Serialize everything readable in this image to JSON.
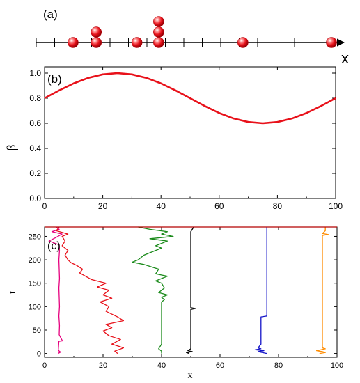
{
  "chart_data": [
    {
      "panel": "(a)",
      "type": "scatter",
      "xlabel": "x",
      "tick_count": 17,
      "particles": [
        {
          "x": 11,
          "stack": 1
        },
        {
          "x": 19,
          "stack": 2
        },
        {
          "x": 33,
          "stack": 1
        },
        {
          "x": 40.5,
          "stack": 3
        },
        {
          "x": 69.5,
          "stack": 1
        },
        {
          "x": 100,
          "stack": 1
        }
      ],
      "ball_color": "#e8111a"
    },
    {
      "panel": "(b)",
      "type": "line",
      "xlabel": "",
      "ylabel": "β",
      "xlim": [
        0,
        100
      ],
      "ylim": [
        0.0,
        1.05
      ],
      "xticks": [
        "0",
        "20",
        "40",
        "60",
        "80",
        "100"
      ],
      "yticks": [
        "0.0",
        "0.2",
        "0.4",
        "0.6",
        "0.8",
        "1.0"
      ],
      "series": [
        {
          "color": "#e8111a",
          "x": [
            0,
            5,
            10,
            15,
            20,
            25,
            30,
            35,
            40,
            45,
            50,
            55,
            60,
            65,
            70,
            75,
            80,
            85,
            90,
            95,
            100
          ],
          "y": [
            0.8,
            0.862,
            0.918,
            0.962,
            0.99,
            1.0,
            0.99,
            0.962,
            0.918,
            0.862,
            0.8,
            0.738,
            0.682,
            0.638,
            0.61,
            0.6,
            0.61,
            0.638,
            0.682,
            0.738,
            0.8
          ]
        }
      ]
    },
    {
      "panel": "(c)",
      "type": "line",
      "xlabel": "x",
      "ylabel": "t",
      "xlim": [
        0,
        100
      ],
      "ylim": [
        -8,
        270
      ],
      "xticks": [
        "0",
        "20",
        "40",
        "60",
        "80",
        "100"
      ],
      "yticks": [
        "0",
        "50",
        "100",
        "150",
        "200",
        "250"
      ],
      "series": [
        {
          "color": "#e6007e",
          "t": [
            0,
            3,
            5,
            8,
            26,
            27,
            40,
            60,
            80,
            100,
            120,
            140,
            160,
            180,
            200,
            220,
            232,
            240,
            248,
            255,
            260,
            265,
            270
          ],
          "x": [
            4.6,
            5.5,
            5.0,
            4.7,
            4.9,
            6.1,
            5.0,
            5.1,
            4.9,
            5.1,
            5.0,
            4.9,
            5.1,
            5.0,
            4.9,
            5.1,
            5.0,
            1.5,
            4.0,
            6.0,
            2.5,
            5.0,
            4.0
          ]
        },
        {
          "color": "#e8111a",
          "t": [
            0,
            5,
            12,
            20,
            30,
            38,
            48,
            55,
            62,
            70,
            78,
            90,
            100,
            110,
            118,
            125,
            135,
            142,
            150,
            158,
            165,
            172,
            180,
            188,
            194,
            200,
            210,
            220,
            230,
            240,
            250,
            255,
            262,
            270
          ],
          "x": [
            25,
            24,
            27,
            23,
            26,
            22,
            20,
            23,
            21,
            27,
            25,
            21,
            22,
            19,
            23,
            20,
            22,
            18,
            21,
            16,
            14,
            12,
            13,
            11,
            9,
            8,
            7,
            8,
            6,
            7,
            6,
            8,
            4,
            5
          ]
        },
        {
          "color": "#1a8a1a",
          "t": [
            0,
            5,
            10,
            20,
            40,
            60,
            80,
            100,
            110,
            115,
            120,
            125,
            130,
            140,
            150,
            155,
            160,
            165,
            170,
            180,
            190,
            195,
            200,
            210,
            220,
            225,
            230,
            240,
            245,
            250,
            255,
            260,
            265,
            270
          ],
          "x": [
            40,
            40,
            39,
            40,
            40,
            40,
            40,
            40,
            40,
            41,
            40,
            42,
            39,
            41,
            40,
            38,
            40,
            42,
            38,
            39,
            34,
            30,
            32,
            34,
            38,
            40,
            38,
            42,
            36,
            44,
            40,
            42,
            36,
            32
          ]
        },
        {
          "color": "#000000",
          "t": [
            0,
            2,
            4,
            6,
            10,
            20,
            40,
            60,
            80,
            94,
            96,
            98,
            120,
            140,
            160,
            180,
            200,
            220,
            240,
            260,
            270
          ],
          "x": [
            49.5,
            48.5,
            50.5,
            49.0,
            50.0,
            50.0,
            50.0,
            50.0,
            50.0,
            50.0,
            51.5,
            50.0,
            50.0,
            50.0,
            50.0,
            50.0,
            50.0,
            50.0,
            50.0,
            50.0,
            51.0
          ]
        },
        {
          "color": "#1414c8",
          "t": [
            0,
            4,
            6,
            8,
            10,
            12,
            20,
            40,
            60,
            78,
            80,
            100,
            150,
            200,
            250,
            270
          ],
          "x": [
            76,
            73,
            75,
            72,
            74,
            73,
            74,
            74,
            74,
            74,
            76,
            76,
            76,
            76,
            76,
            76
          ]
        },
        {
          "color": "#ff8c00",
          "t": [
            0,
            2,
            4,
            6,
            10,
            12,
            20,
            60,
            100,
            150,
            200,
            252,
            254,
            256,
            262,
            270
          ],
          "x": [
            94,
            96,
            95,
            93,
            96,
            95,
            95,
            95,
            95,
            95,
            95,
            95,
            97,
            95,
            96,
            96
          ]
        }
      ]
    }
  ]
}
